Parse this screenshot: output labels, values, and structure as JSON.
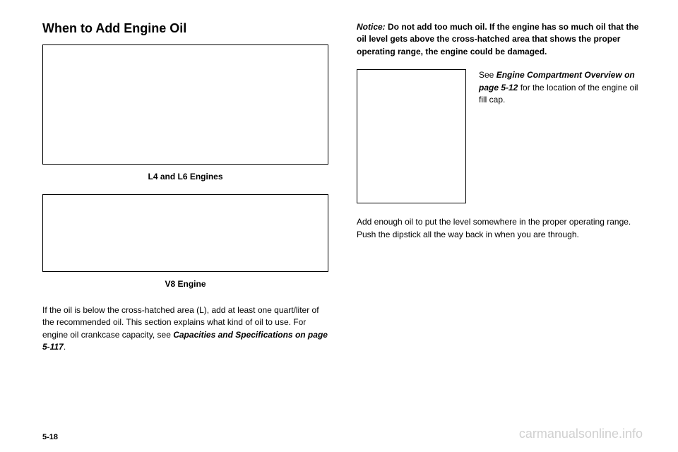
{
  "left": {
    "title": "When to Add Engine Oil",
    "caption1": "L4 and L6 Engines",
    "caption2": "V8 Engine",
    "body1": "If the oil is below the cross-hatched area (L), add at least one quart/liter of the recommended oil. This section explains what kind of oil to use. For engine oil crankcase capacity, see ",
    "body1_italic": "Capacities and Specifications on page 5-117",
    "body1_end": "."
  },
  "right": {
    "notice_label": "Notice:",
    "notice_text": " Do not add too much oil. If the engine has so much oil that the oil level gets above the cross-hatched area that shows the proper operating range, the engine could be damaged.",
    "side_text1": "See ",
    "side_text_italic": "Engine Compartment Overview on page 5-12",
    "side_text2": " for the location of the engine oil fill cap.",
    "body2": "Add enough oil to put the level somewhere in the proper operating range. Push the dipstick all the way back in when you are through."
  },
  "footer": {
    "page": "5-18",
    "watermark": "carmanualsonline.info"
  },
  "colors": {
    "text": "#000000",
    "background": "#ffffff",
    "watermark": "#d0d0d0",
    "border": "#000000"
  }
}
